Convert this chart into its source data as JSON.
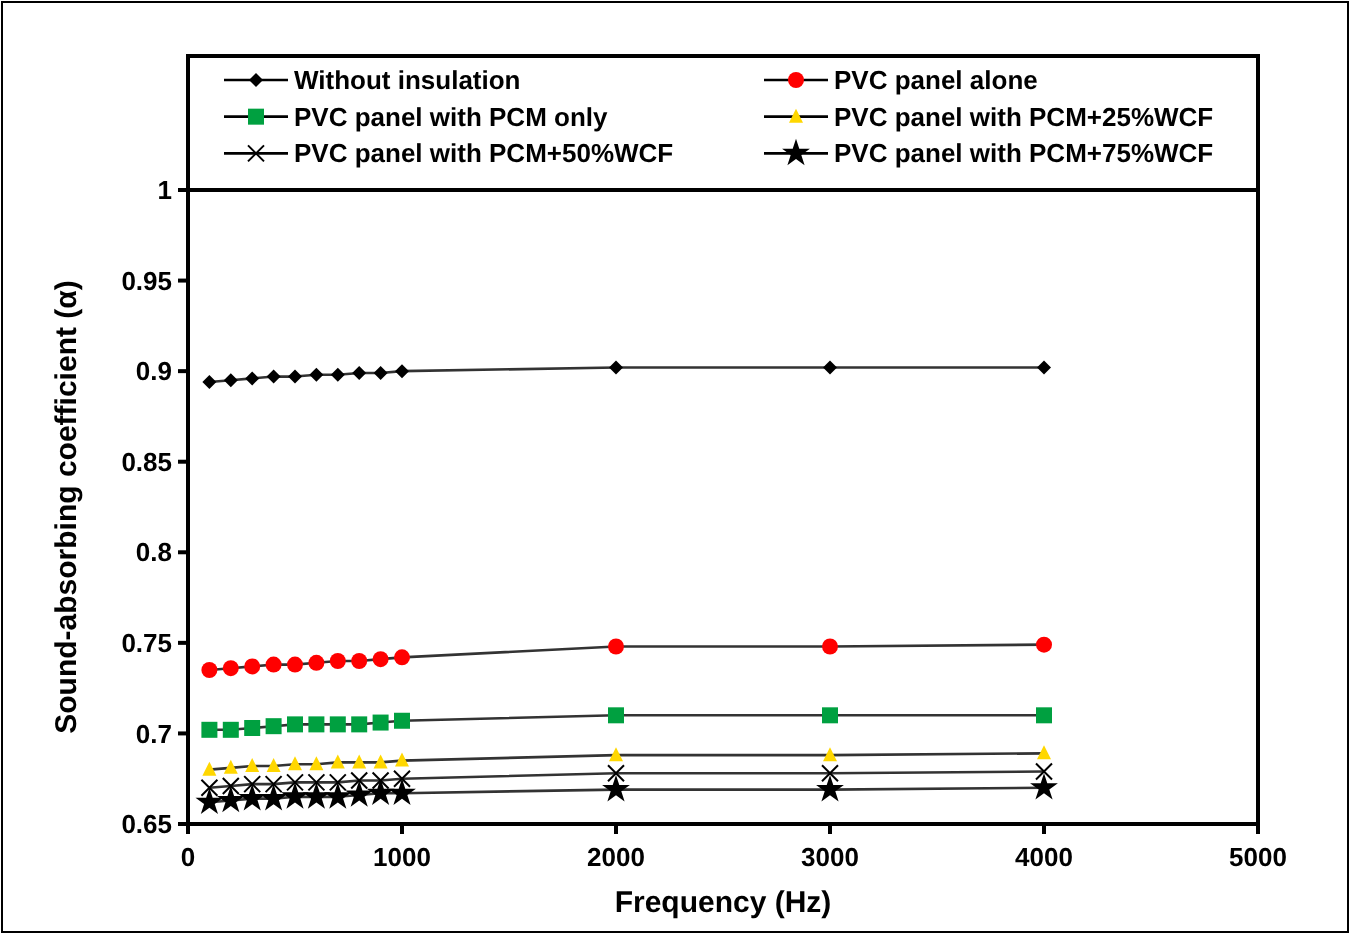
{
  "chart_data": {
    "type": "line",
    "xlabel": "Frequency (Hz)",
    "ylabel": "Sound-absorbing coefficient (α)",
    "x": [
      100,
      200,
      300,
      400,
      500,
      600,
      700,
      800,
      900,
      1000,
      2000,
      3000,
      4000
    ],
    "xlim": [
      0,
      5000
    ],
    "xticks": [
      0,
      1000,
      2000,
      3000,
      4000,
      5000
    ],
    "ylim": [
      0.65,
      1
    ],
    "yticks": [
      {
        "value": 0.65,
        "label": "0.65"
      },
      {
        "value": 0.7,
        "label": "0.7"
      },
      {
        "value": 0.75,
        "label": "0.75"
      },
      {
        "value": 0.8,
        "label": "0.8"
      },
      {
        "value": 0.85,
        "label": "0.85"
      },
      {
        "value": 0.9,
        "label": "0.9"
      },
      {
        "value": 0.95,
        "label": "0.95"
      },
      {
        "value": 1,
        "label": "1"
      }
    ],
    "grid": false,
    "legend": "top",
    "series": [
      {
        "name": "Without insulation",
        "color": "#000000",
        "marker": "diamond",
        "values": [
          0.894,
          0.895,
          0.896,
          0.897,
          0.897,
          0.898,
          0.898,
          0.899,
          0.899,
          0.9,
          0.902,
          0.902,
          0.902
        ]
      },
      {
        "name": "PVC panel alone",
        "color": "#ff0000",
        "marker": "circle",
        "values": [
          0.735,
          0.736,
          0.737,
          0.738,
          0.738,
          0.739,
          0.74,
          0.74,
          0.741,
          0.742,
          0.748,
          0.748,
          0.749
        ]
      },
      {
        "name": "PVC panel with PCM only",
        "color": "#00a040",
        "marker": "square",
        "values": [
          0.702,
          0.702,
          0.703,
          0.704,
          0.705,
          0.705,
          0.705,
          0.705,
          0.706,
          0.707,
          0.71,
          0.71,
          0.71
        ]
      },
      {
        "name": "PVC panel with PCM+25%WCF",
        "color": "#ffd700",
        "marker": "triangle",
        "values": [
          0.68,
          0.681,
          0.682,
          0.682,
          0.683,
          0.683,
          0.684,
          0.684,
          0.684,
          0.685,
          0.688,
          0.688,
          0.689
        ]
      },
      {
        "name": "PVC panel with PCM+50%WCF",
        "color": "#000000",
        "marker": "cross",
        "values": [
          0.67,
          0.671,
          0.672,
          0.672,
          0.673,
          0.673,
          0.673,
          0.674,
          0.674,
          0.675,
          0.678,
          0.678,
          0.679
        ]
      },
      {
        "name": "PVC panel with PCM+75%WCF",
        "color": "#000000",
        "marker": "star",
        "values": [
          0.662,
          0.663,
          0.664,
          0.664,
          0.665,
          0.665,
          0.665,
          0.666,
          0.667,
          0.667,
          0.669,
          0.669,
          0.67
        ]
      }
    ]
  }
}
